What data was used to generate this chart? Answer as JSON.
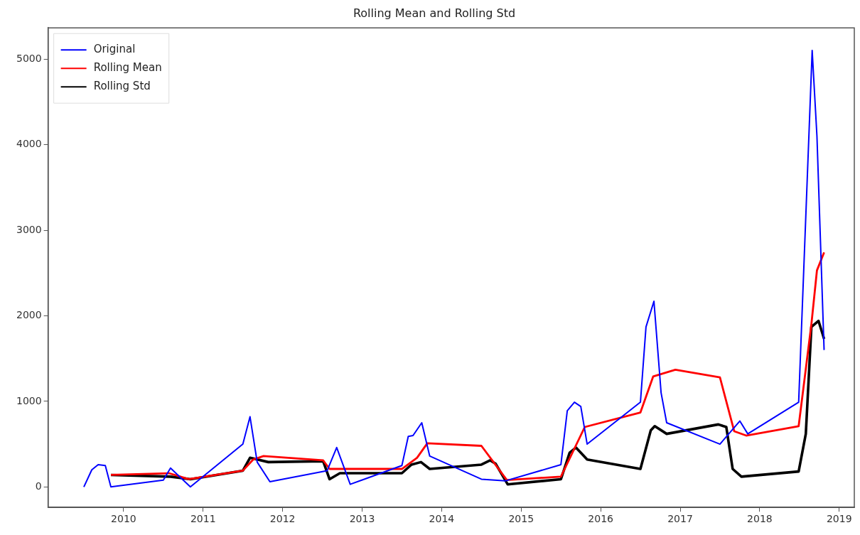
{
  "chart_data": {
    "type": "line",
    "title": "Rolling Mean and Rolling Std",
    "xlim": [
      2009.05,
      2019.19
    ],
    "xticks": [
      2010,
      2011,
      2012,
      2013,
      2014,
      2015,
      2016,
      2017,
      2018,
      2019
    ],
    "ylim": [
      -240,
      5365
    ],
    "yticks": [
      0,
      1000,
      2000,
      3000,
      4000,
      5000
    ],
    "grid": false,
    "legend": "top left",
    "marker": "none",
    "line_style": "solid",
    "series": [
      {
        "name": "Original",
        "color": "#0000ff",
        "x": [
          2009.5,
          2009.6,
          2009.68,
          2009.77,
          2009.84,
          2010.5,
          2010.59,
          2010.84,
          2011.5,
          2011.59,
          2011.68,
          2011.84,
          2012.56,
          2012.68,
          2012.85,
          2013.5,
          2013.58,
          2013.64,
          2013.75,
          2013.85,
          2014.5,
          2014.8,
          2015.5,
          2015.58,
          2015.67,
          2015.75,
          2015.83,
          2016.5,
          2016.57,
          2016.67,
          2016.76,
          2016.83,
          2017.5,
          2017.75,
          2017.85,
          2018.49,
          2018.66,
          2018.72,
          2018.81
        ],
        "values": [
          0,
          200,
          260,
          250,
          0,
          80,
          220,
          0,
          500,
          820,
          290,
          60,
          190,
          460,
          30,
          250,
          590,
          600,
          750,
          360,
          90,
          70,
          260,
          890,
          990,
          940,
          500,
          990,
          1870,
          2170,
          1100,
          750,
          500,
          770,
          620,
          990,
          5100,
          4100,
          1600
        ]
      },
      {
        "name": "Rolling Mean",
        "color": "#ff0000",
        "x": [
          2009.84,
          2010.57,
          2010.82,
          2011.02,
          2011.5,
          2011.63,
          2011.76,
          2012.51,
          2012.59,
          2012.69,
          2013.5,
          2013.69,
          2013.82,
          2014.5,
          2014.82,
          2015.5,
          2015.8,
          2016.5,
          2016.66,
          2016.94,
          2017.5,
          2017.68,
          2017.83,
          2018.49,
          2018.65,
          2018.72,
          2018.81
        ],
        "values": [
          140,
          160,
          90,
          120,
          190,
          320,
          360,
          310,
          210,
          210,
          210,
          340,
          510,
          480,
          80,
          120,
          700,
          870,
          1290,
          1370,
          1280,
          650,
          600,
          710,
          1900,
          2530,
          2740
        ]
      },
      {
        "name": "Rolling Std",
        "color": "#000000",
        "x": [
          2009.84,
          2010.59,
          2010.84,
          2011.5,
          2011.59,
          2011.82,
          2012.51,
          2012.59,
          2012.72,
          2013.5,
          2013.62,
          2013.74,
          2013.85,
          2014.5,
          2014.61,
          2014.68,
          2014.83,
          2015.5,
          2015.61,
          2015.69,
          2015.83,
          2016.5,
          2016.63,
          2016.68,
          2016.83,
          2017.48,
          2017.58,
          2017.66,
          2017.77,
          2018.49,
          2018.58,
          2018.65,
          2018.74,
          2018.81
        ],
        "values": [
          140,
          120,
          90,
          190,
          340,
          290,
          300,
          90,
          160,
          160,
          260,
          290,
          210,
          260,
          310,
          270,
          30,
          90,
          400,
          460,
          320,
          210,
          660,
          710,
          620,
          730,
          700,
          210,
          120,
          180,
          620,
          1870,
          1940,
          1730
        ]
      }
    ]
  }
}
